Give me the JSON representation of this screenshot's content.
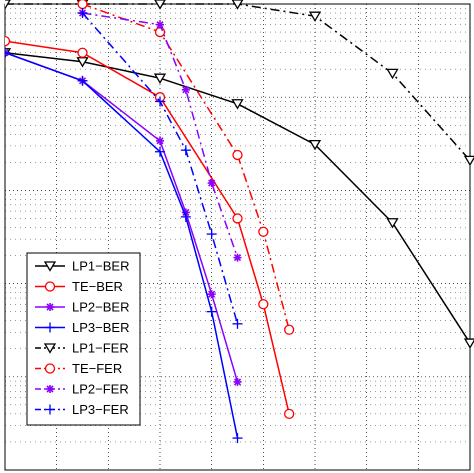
{
  "chart_data": {
    "type": "line",
    "title": "",
    "xlabel": "",
    "ylabel": "",
    "x_scale": "linear",
    "y_scale": "log",
    "xlim": [
      0,
      9
    ],
    "ylim": [
      1e-05,
      1
    ],
    "grid": true,
    "legend_position": "lower-left",
    "series": [
      {
        "name": "LP1−BER",
        "color": "#000000",
        "dash": "solid",
        "marker": "triangle-down",
        "x": [
          0,
          1.5,
          3,
          4.5,
          6,
          7.5,
          9
        ],
        "y": [
          0.3,
          0.24,
          0.16,
          0.085,
          0.031,
          0.0045,
          0.00023
        ]
      },
      {
        "name": "TE−BER",
        "color": "#ff0000",
        "dash": "solid",
        "marker": "circle",
        "x": [
          0,
          1.5,
          3,
          4.5,
          5,
          5.5
        ],
        "y": [
          0.4,
          0.3,
          0.1,
          0.005,
          0.0006,
          4e-05
        ]
      },
      {
        "name": "LP2−BER",
        "color": "#8b00ff",
        "dash": "solid",
        "marker": "star",
        "x": [
          0,
          1.5,
          3,
          3.5,
          4,
          4.5
        ],
        "y": [
          0.3,
          0.15,
          0.034,
          0.0058,
          0.00077,
          8.8e-05
        ]
      },
      {
        "name": "LP3−BER",
        "color": "#0000ff",
        "dash": "solid",
        "marker": "plus",
        "x": [
          0,
          1.5,
          3,
          3.5,
          4,
          4.5
        ],
        "y": [
          0.3,
          0.15,
          0.026,
          0.0052,
          0.0005,
          2.2e-05
        ]
      },
      {
        "name": "LP1−FER",
        "color": "#000000",
        "dash": "dashdot",
        "marker": "triangle-down",
        "x": [
          0,
          1.5,
          3,
          4.5,
          6,
          7.5,
          9
        ],
        "y": [
          1,
          1,
          1,
          1,
          0.74,
          0.18,
          0.021
        ]
      },
      {
        "name": "TE−FER",
        "color": "#ff0000",
        "dash": "dashdot",
        "marker": "circle",
        "x": [
          1.5,
          3,
          4.5,
          5,
          5.5
        ],
        "y": [
          1,
          0.5,
          0.024,
          0.0036,
          0.00032
        ]
      },
      {
        "name": "LP2−FER",
        "color": "#8b00ff",
        "dash": "dashdot",
        "marker": "star",
        "x": [
          1.5,
          3,
          3.5,
          4,
          4.5
        ],
        "y": [
          0.8,
          0.6,
          0.12,
          0.012,
          0.0019
        ]
      },
      {
        "name": "LP3−FER",
        "color": "#0000ff",
        "dash": "dashdot",
        "marker": "plus",
        "x": [
          1.5,
          3,
          3.5,
          4,
          4.5
        ],
        "y": [
          0.8,
          0.09,
          0.027,
          0.0034,
          0.00037
        ]
      }
    ]
  }
}
